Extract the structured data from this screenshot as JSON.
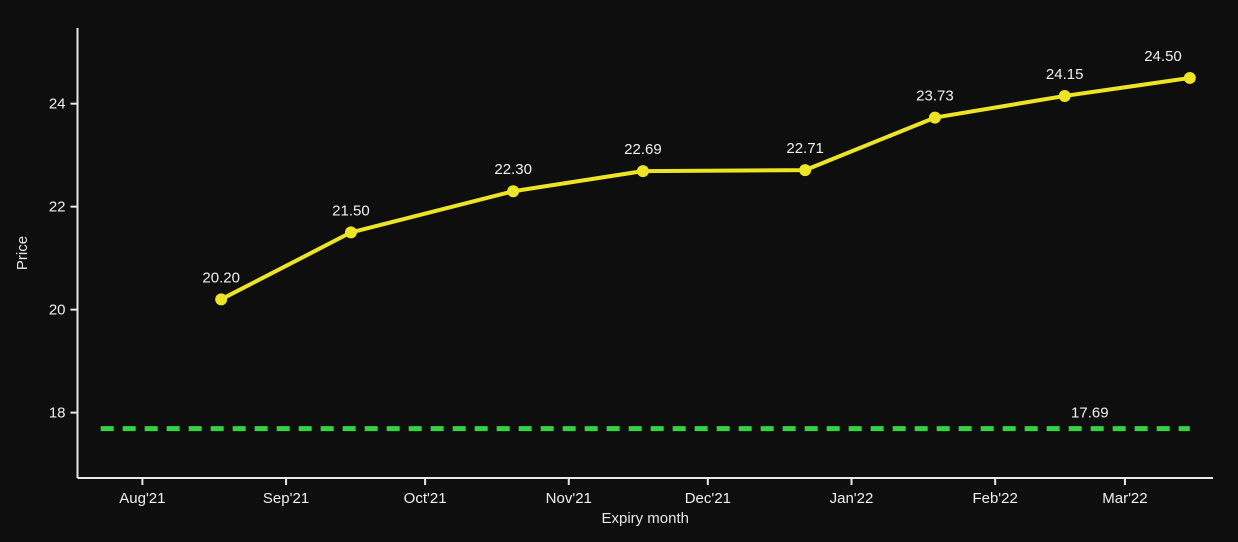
{
  "chart_data": {
    "type": "line",
    "title": "",
    "xlabel": "Expiry month",
    "ylabel": "Price",
    "grid": false,
    "legend": null,
    "colors": {
      "background": "#0e0e0e",
      "axis": "#e8e8e8",
      "tick_text": "#f0f0f0",
      "label_text": "#e8e8e8",
      "series": "#ede425",
      "reference": "#34d344"
    },
    "series": [
      {
        "name": "price-by-expiry",
        "color": "#ede425",
        "marker": "circle",
        "x_days": [
          17,
          45,
          80,
          108,
          143,
          171,
          199,
          226
        ],
        "values": [
          20.2,
          21.5,
          22.3,
          22.69,
          22.71,
          23.73,
          24.15,
          24.5
        ],
        "point_labels": [
          "20.20",
          "21.50",
          "22.30",
          "22.69",
          "22.71",
          "23.73",
          "24.15",
          "24.50"
        ]
      }
    ],
    "reference_line": {
      "value": 17.69,
      "label": "17.69",
      "color": "#34d344",
      "style": "dashed",
      "x_start_day": -9,
      "x_end_day": 226
    },
    "x_axis": {
      "label": "Expiry month",
      "range_days": [
        -14,
        231
      ],
      "ticks": [
        {
          "label": "Aug'21",
          "day": 0
        },
        {
          "label": "Sep'21",
          "day": 31
        },
        {
          "label": "Oct'21",
          "day": 61
        },
        {
          "label": "Nov'21",
          "day": 92
        },
        {
          "label": "Dec'21",
          "day": 122
        },
        {
          "label": "Jan'22",
          "day": 153
        },
        {
          "label": "Feb'22",
          "day": 184
        },
        {
          "label": "Mar'22",
          "day": 212
        }
      ]
    },
    "y_axis": {
      "label": "Price",
      "range": [
        16.73,
        25.47
      ],
      "ticks": [
        18,
        20,
        22,
        24
      ],
      "tick_labels": [
        "18",
        "20",
        "22",
        "24"
      ]
    }
  }
}
